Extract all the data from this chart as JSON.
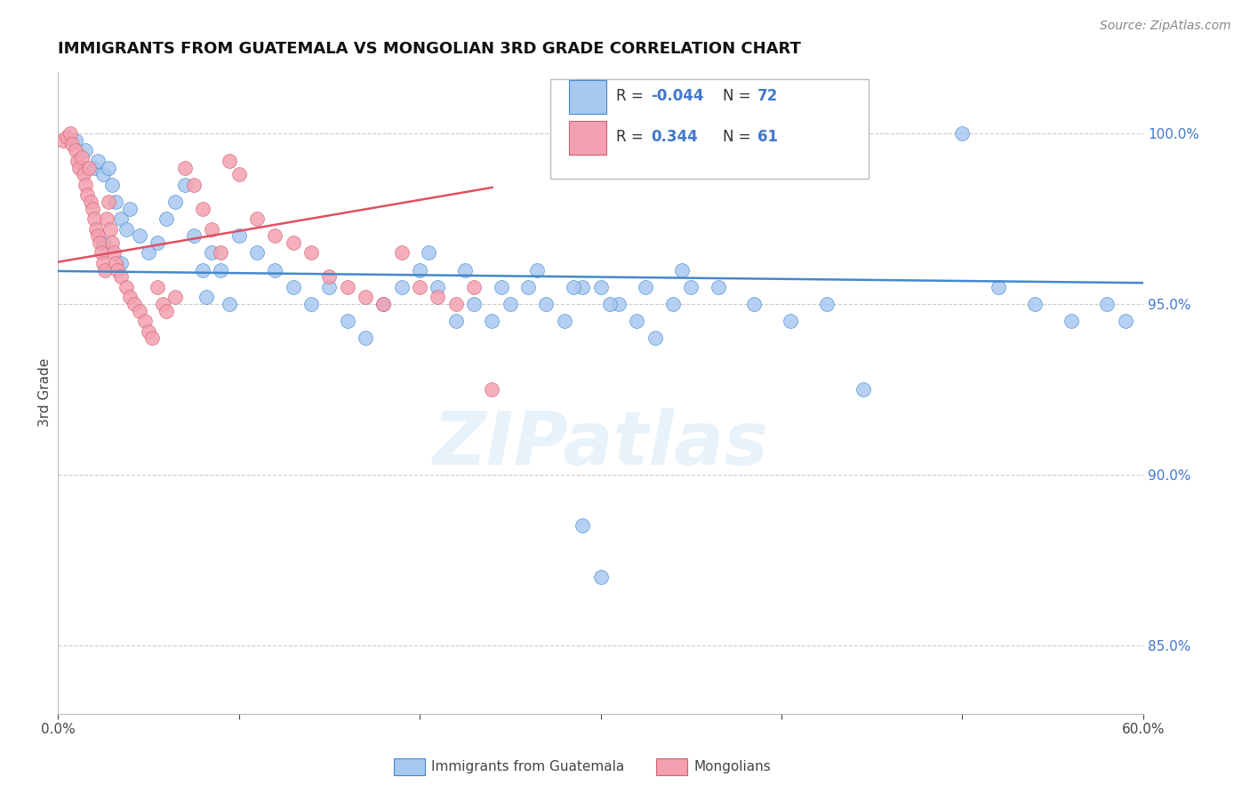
{
  "title": "IMMIGRANTS FROM GUATEMALA VS MONGOLIAN 3RD GRADE CORRELATION CHART",
  "source": "Source: ZipAtlas.com",
  "ylabel": "3rd Grade",
  "right_yticks": [
    85.0,
    90.0,
    95.0,
    100.0
  ],
  "right_yticklabels": [
    "85.0%",
    "90.0%",
    "95.0%",
    "100.0%"
  ],
  "xmin": 0.0,
  "xmax": 60.0,
  "ymin": 83.0,
  "ymax": 101.8,
  "blue_color": "#a8c8f0",
  "pink_color": "#f4a0b0",
  "trendline_blue": "#4488cc",
  "trendline_pink": "#e05060",
  "blue_edge": "#4488cc",
  "pink_edge": "#d06070",
  "watermark": "ZIPatlas",
  "legend_r1_label": "R = ",
  "legend_r1_val": "-0.044",
  "legend_n1_label": "N = ",
  "legend_n1_val": "72",
  "legend_r2_label": "R =  ",
  "legend_r2_val": "0.344",
  "legend_n2_label": "N = ",
  "legend_n2_val": "61",
  "blue_x": [
    1.0,
    1.5,
    2.0,
    2.2,
    2.5,
    2.8,
    3.0,
    3.2,
    3.5,
    3.8,
    4.0,
    4.5,
    5.0,
    5.5,
    6.0,
    6.5,
    7.0,
    7.5,
    8.0,
    8.5,
    9.0,
    10.0,
    11.0,
    12.0,
    13.0,
    14.0,
    15.0,
    16.0,
    17.0,
    18.0,
    19.0,
    20.0,
    21.0,
    22.0,
    23.0,
    24.0,
    25.0,
    26.0,
    27.0,
    28.0,
    29.0,
    30.0,
    31.0,
    32.0,
    33.0,
    34.0,
    35.0,
    20.5,
    22.5,
    24.5,
    26.5,
    28.5,
    30.5,
    32.5,
    34.5,
    36.5,
    38.5,
    40.5,
    42.5,
    44.5,
    50.0,
    52.0,
    29.0,
    30.0,
    2.5,
    3.5,
    54.0,
    56.0,
    58.0,
    59.0,
    8.2,
    9.5
  ],
  "blue_y": [
    99.8,
    99.5,
    99.0,
    99.2,
    98.8,
    99.0,
    98.5,
    98.0,
    97.5,
    97.2,
    97.8,
    97.0,
    96.5,
    96.8,
    97.5,
    98.0,
    98.5,
    97.0,
    96.0,
    96.5,
    96.0,
    97.0,
    96.5,
    96.0,
    95.5,
    95.0,
    95.5,
    94.5,
    94.0,
    95.0,
    95.5,
    96.0,
    95.5,
    94.5,
    95.0,
    94.5,
    95.0,
    95.5,
    95.0,
    94.5,
    95.5,
    95.5,
    95.0,
    94.5,
    94.0,
    95.0,
    95.5,
    96.5,
    96.0,
    95.5,
    96.0,
    95.5,
    95.0,
    95.5,
    96.0,
    95.5,
    95.0,
    94.5,
    95.0,
    92.5,
    100.0,
    95.5,
    88.5,
    87.0,
    96.8,
    96.2,
    95.0,
    94.5,
    95.0,
    94.5,
    95.2,
    95.0
  ],
  "pink_x": [
    0.3,
    0.5,
    0.7,
    0.8,
    1.0,
    1.1,
    1.2,
    1.3,
    1.4,
    1.5,
    1.6,
    1.7,
    1.8,
    1.9,
    2.0,
    2.1,
    2.2,
    2.3,
    2.4,
    2.5,
    2.6,
    2.7,
    2.8,
    2.9,
    3.0,
    3.1,
    3.2,
    3.3,
    3.5,
    3.8,
    4.0,
    4.2,
    4.5,
    4.8,
    5.0,
    5.2,
    5.5,
    5.8,
    6.0,
    6.5,
    7.0,
    7.5,
    8.0,
    8.5,
    9.0,
    9.5,
    10.0,
    11.0,
    12.0,
    13.0,
    14.0,
    15.0,
    16.0,
    17.0,
    18.0,
    19.0,
    20.0,
    21.0,
    22.0,
    23.0,
    24.0
  ],
  "pink_y": [
    99.8,
    99.9,
    100.0,
    99.7,
    99.5,
    99.2,
    99.0,
    99.3,
    98.8,
    98.5,
    98.2,
    99.0,
    98.0,
    97.8,
    97.5,
    97.2,
    97.0,
    96.8,
    96.5,
    96.2,
    96.0,
    97.5,
    98.0,
    97.2,
    96.8,
    96.5,
    96.2,
    96.0,
    95.8,
    95.5,
    95.2,
    95.0,
    94.8,
    94.5,
    94.2,
    94.0,
    95.5,
    95.0,
    94.8,
    95.2,
    99.0,
    98.5,
    97.8,
    97.2,
    96.5,
    99.2,
    98.8,
    97.5,
    97.0,
    96.8,
    96.5,
    95.8,
    95.5,
    95.2,
    95.0,
    96.5,
    95.5,
    95.2,
    95.0,
    95.5,
    92.5
  ]
}
